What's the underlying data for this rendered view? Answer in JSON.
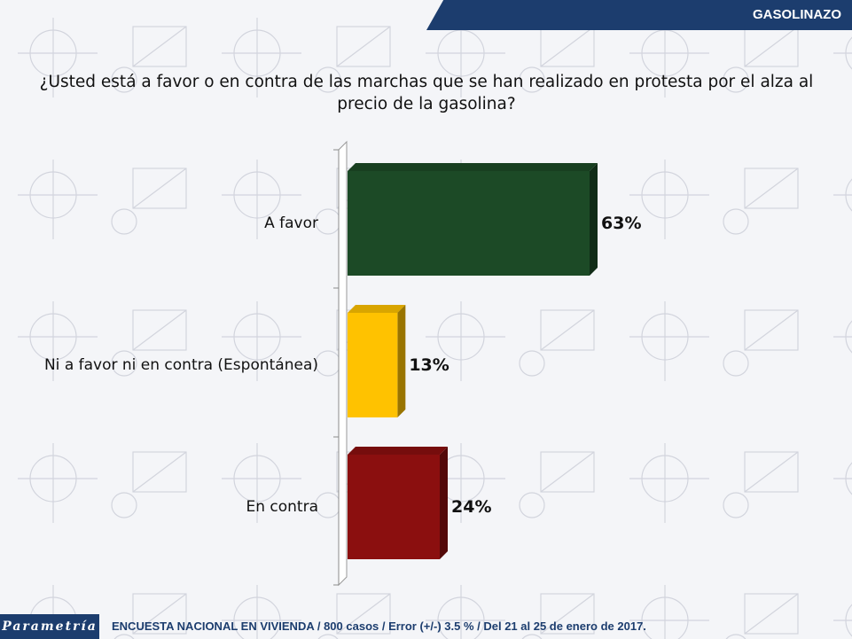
{
  "header": {
    "section_label": "GASOLINAZO"
  },
  "question": "¿Usted está a favor o en contra de las marchas que se han realizado en protesta por el alza al precio de la gasolina?",
  "chart_data": {
    "type": "bar",
    "orientation": "horizontal",
    "categories": [
      "A favor",
      "Ni a favor ni en contra (Espontánea)",
      "En contra"
    ],
    "values": [
      63,
      13,
      24
    ],
    "value_labels": [
      "63%",
      "13%",
      "24%"
    ],
    "xlim": [
      0,
      100
    ],
    "colors": [
      "#1c4a26",
      "#ffc200",
      "#8b0f0f"
    ],
    "grid": false,
    "legend": "none"
  },
  "footer": {
    "brand": "Parametría",
    "note": "ENCUESTA NACIONAL EN VIVIENDA / 800 casos / Error (+/-) 3.5 % / Del 21 al 25 de enero de 2017."
  }
}
